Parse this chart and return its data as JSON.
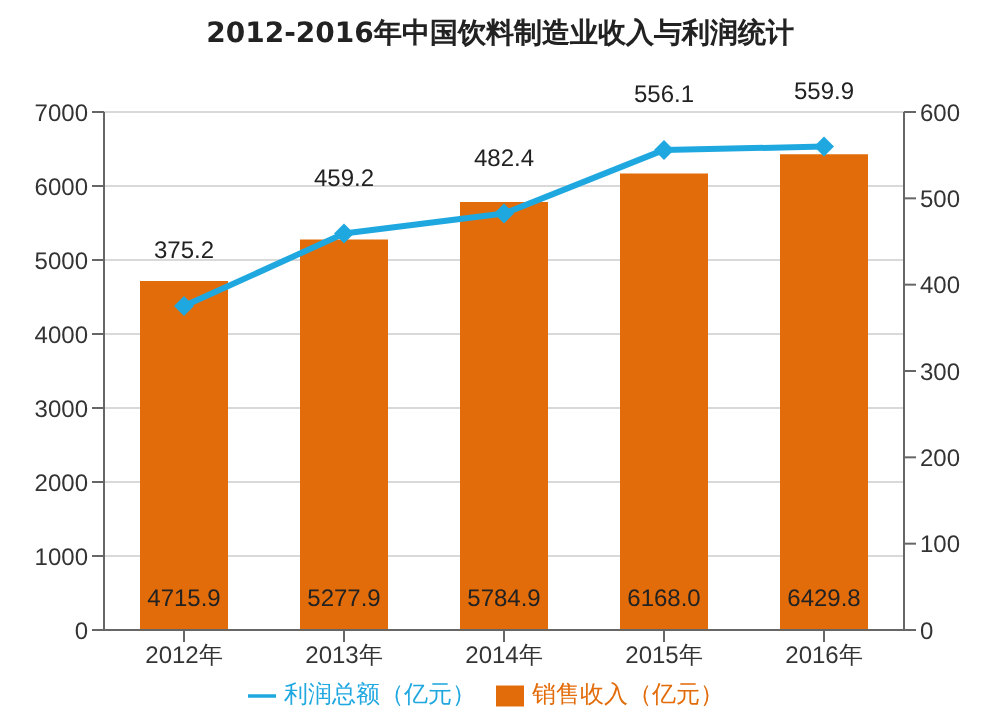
{
  "chart_data": {
    "type": "bar",
    "title": "2012-2016年中国饮料制造业收入与利润统计",
    "categories": [
      "2012年",
      "2013年",
      "2014年",
      "2015年",
      "2016年"
    ],
    "series": [
      {
        "name": "销售收入（亿元）",
        "color": "#e36c0a",
        "values": [
          4715.9,
          5277.9,
          5784.9,
          6168,
          6429.8
        ],
        "value_labels": [
          "4715.9",
          "5277.9",
          "5784.9",
          "6168.0",
          "6429.8"
        ]
      },
      {
        "name": "利润总额（亿元）",
        "type": "line",
        "axis": "y2",
        "color": "#1fa8e0",
        "values": [
          375.2,
          459.2,
          482.4,
          556.1,
          559.9
        ],
        "value_labels": [
          "375.2",
          "459.2",
          "482.4",
          "556.1",
          "559.9"
        ]
      }
    ],
    "ylim": [
      0,
      7000
    ],
    "yticks": [
      0,
      1000,
      2000,
      3000,
      4000,
      5000,
      6000,
      7000
    ],
    "y2lim": [
      0,
      600
    ],
    "y2ticks": [
      0,
      100,
      200,
      300,
      400,
      500,
      600
    ],
    "grid": "y",
    "legend": "bottom",
    "marker": "diamond"
  }
}
